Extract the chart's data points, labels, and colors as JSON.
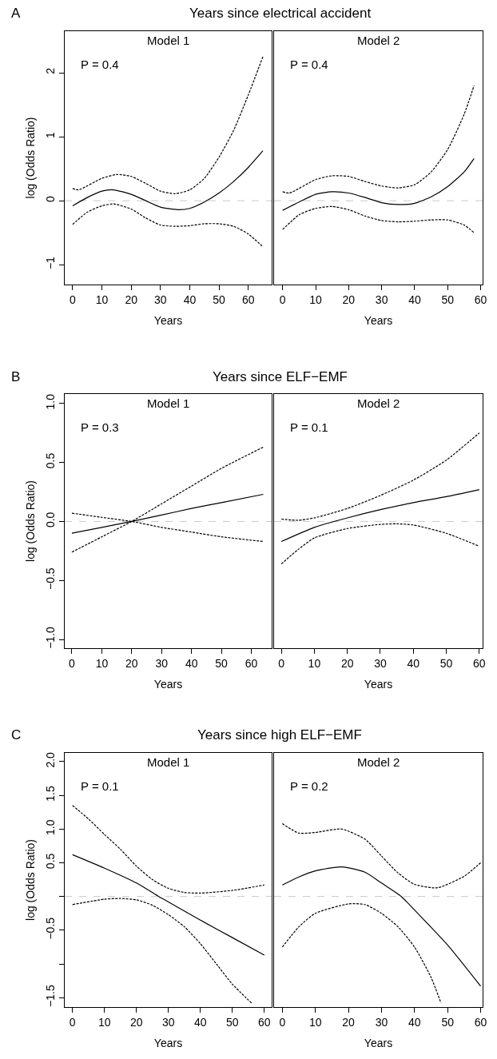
{
  "chart_data": [
    {
      "type": "line",
      "subtitle": "Years since electrical accident",
      "title": "Model 1",
      "xlabel": "Years",
      "ylabel": "log (Odds Ratio)",
      "annotations": [
        "A",
        "P = 0.4"
      ],
      "xlim": [
        -2.7,
        68
      ],
      "ylim": [
        -1.31,
        2.65
      ],
      "xticks": [
        0,
        10,
        20,
        30,
        40,
        50,
        60
      ],
      "yticks": [
        {
          "value": -1,
          "label": "−1"
        },
        0,
        1,
        2
      ],
      "grid": false,
      "ref_lines": [
        {
          "axis": "y",
          "value": 0,
          "color": "#c8c8c8",
          "line_style": "dashed"
        }
      ],
      "series": [
        {
          "color": "#000000",
          "line_style": "solid",
          "x": [
            0,
            5,
            10,
            14,
            20,
            25,
            30,
            36,
            40,
            45,
            50,
            55,
            60,
            65
          ],
          "values": [
            -0.08,
            0.05,
            0.15,
            0.17,
            0.1,
            0.0,
            -0.1,
            -0.14,
            -0.12,
            -0.02,
            0.12,
            0.3,
            0.52,
            0.78
          ]
        },
        {
          "color": "#000000",
          "line_style": "dashed",
          "x": [
            0,
            2,
            10,
            15,
            20,
            25,
            30,
            35,
            40,
            45,
            50,
            55,
            60,
            65
          ],
          "values": [
            0.19,
            0.17,
            0.35,
            0.41,
            0.38,
            0.27,
            0.15,
            0.11,
            0.17,
            0.35,
            0.68,
            1.1,
            1.65,
            2.25
          ]
        },
        {
          "color": "#000000",
          "line_style": "dashed",
          "x": [
            0,
            5,
            10,
            14,
            20,
            25,
            30,
            35,
            40,
            45,
            50,
            55,
            60,
            65
          ],
          "values": [
            -0.37,
            -0.18,
            -0.08,
            -0.05,
            -0.13,
            -0.27,
            -0.38,
            -0.4,
            -0.39,
            -0.36,
            -0.36,
            -0.4,
            -0.52,
            -0.72
          ]
        }
      ]
    },
    {
      "type": "line",
      "title": "Model 2",
      "xlabel": "Years",
      "annotations": [
        "P = 0.4"
      ],
      "xlim": [
        -2.6,
        60.6
      ],
      "ylim": [
        -1.31,
        2.65
      ],
      "xticks": [
        0,
        10,
        20,
        30,
        40,
        50,
        60
      ],
      "tick_labels": "x",
      "grid": false,
      "ref_lines": [
        {
          "axis": "y",
          "value": 0,
          "color": "#c8c8c8",
          "line_style": "dashed"
        }
      ],
      "series": [
        {
          "color": "#000000",
          "line_style": "solid",
          "x": [
            0,
            5,
            10,
            15,
            20,
            25,
            30,
            35,
            40,
            45,
            50,
            55,
            58
          ],
          "values": [
            -0.15,
            -0.02,
            0.1,
            0.14,
            0.12,
            0.05,
            -0.03,
            -0.06,
            -0.04,
            0.06,
            0.22,
            0.45,
            0.66
          ]
        },
        {
          "color": "#000000",
          "line_style": "dashed",
          "x": [
            0,
            2,
            10,
            15,
            20,
            25,
            30,
            35,
            40,
            45,
            50,
            55,
            58
          ],
          "values": [
            0.14,
            0.12,
            0.33,
            0.39,
            0.38,
            0.3,
            0.23,
            0.2,
            0.25,
            0.45,
            0.8,
            1.35,
            1.8
          ]
        },
        {
          "color": "#000000",
          "line_style": "dashed",
          "x": [
            0,
            5,
            10,
            15,
            20,
            25,
            30,
            35,
            40,
            45,
            50,
            55,
            58
          ],
          "values": [
            -0.45,
            -0.22,
            -0.12,
            -0.09,
            -0.14,
            -0.24,
            -0.31,
            -0.33,
            -0.32,
            -0.3,
            -0.3,
            -0.38,
            -0.5
          ]
        }
      ]
    },
    {
      "type": "line",
      "subtitle": "Years since ELF−EMF",
      "title": "Model 1",
      "xlabel": "Years",
      "ylabel": "log (Odds Ratio)",
      "annotations": [
        "B",
        "P = 0.3"
      ],
      "xlim": [
        -2.4,
        66.8
      ],
      "ylim": [
        -1.074,
        1.08
      ],
      "xticks": [
        0,
        10,
        20,
        30,
        40,
        50,
        60
      ],
      "yticks": [
        {
          "value": -1,
          "label": "−1.0"
        },
        {
          "value": -0.5,
          "label": "−0.5"
        },
        {
          "value": 0,
          "label": "0.0"
        },
        0.5,
        {
          "value": 1,
          "label": "1.0"
        }
      ],
      "grid": false,
      "ref_lines": [
        {
          "axis": "y",
          "value": 0,
          "color": "#c8c8c8",
          "line_style": "dashed"
        }
      ],
      "series": [
        {
          "color": "#000000",
          "line_style": "solid",
          "x": [
            0,
            10,
            20,
            30,
            40,
            50,
            64
          ],
          "values": [
            -0.1,
            -0.05,
            0.0,
            0.055,
            0.11,
            0.16,
            0.23
          ]
        },
        {
          "color": "#000000",
          "line_style": "dashed",
          "x": [
            0,
            10,
            20,
            30,
            40,
            50,
            64
          ],
          "values": [
            -0.26,
            -0.13,
            0.0,
            0.15,
            0.3,
            0.45,
            0.63
          ]
        },
        {
          "color": "#000000",
          "line_style": "dashed",
          "x": [
            0,
            10,
            20,
            30,
            40,
            50,
            64
          ],
          "values": [
            0.07,
            0.035,
            0.0,
            -0.05,
            -0.09,
            -0.13,
            -0.17
          ]
        }
      ]
    },
    {
      "type": "line",
      "title": "Model 2",
      "xlabel": "Years",
      "annotations": [
        "P = 0.1"
      ],
      "xlim": [
        -2.2,
        61
      ],
      "ylim": [
        -1.074,
        1.08
      ],
      "xticks": [
        0,
        10,
        20,
        30,
        40,
        50,
        60
      ],
      "tick_labels": "x",
      "grid": false,
      "ref_lines": [
        {
          "axis": "y",
          "value": 0,
          "color": "#c8c8c8",
          "line_style": "dashed"
        }
      ],
      "series": [
        {
          "color": "#000000",
          "line_style": "solid",
          "x": [
            0,
            10,
            20,
            30,
            40,
            50,
            60
          ],
          "values": [
            -0.17,
            -0.05,
            0.03,
            0.1,
            0.16,
            0.21,
            0.27
          ]
        },
        {
          "color": "#000000",
          "line_style": "dashed",
          "x": [
            0,
            5,
            10,
            20,
            30,
            40,
            50,
            60
          ],
          "values": [
            0.02,
            0.01,
            0.03,
            0.11,
            0.22,
            0.35,
            0.52,
            0.75
          ]
        },
        {
          "color": "#000000",
          "line_style": "dashed",
          "x": [
            0,
            5,
            10,
            20,
            30,
            35,
            40,
            50,
            60
          ],
          "values": [
            -0.36,
            -0.24,
            -0.14,
            -0.06,
            -0.025,
            -0.02,
            -0.03,
            -0.1,
            -0.21
          ]
        }
      ]
    },
    {
      "type": "line",
      "subtitle": "Years since high ELF−EMF",
      "title": "Model 1",
      "xlabel": "Years",
      "ylabel": "log (Odds Ratio)",
      "annotations": [
        "C",
        "P = 0.1"
      ],
      "xlim": [
        -2.44,
        62.3
      ],
      "ylim": [
        -1.64,
        2.13
      ],
      "xticks": [
        0,
        10,
        20,
        30,
        40,
        50,
        60
      ],
      "yticks": [
        {
          "value": -1.5,
          "label": "−1.5"
        },
        {
          "value": -1,
          "label": null
        },
        {
          "value": -0.5,
          "label": "−0.5"
        },
        {
          "value": 0,
          "label": null
        },
        0.5,
        {
          "value": 1,
          "label": "1.0"
        },
        1.5,
        {
          "value": 2,
          "label": "2.0"
        }
      ],
      "grid": false,
      "ref_lines": [
        {
          "axis": "y",
          "value": 0,
          "color": "#c8c8c8",
          "line_style": "dashed"
        }
      ],
      "series": [
        {
          "color": "#000000",
          "line_style": "solid",
          "x": [
            0,
            10,
            20,
            27,
            30,
            40,
            50,
            60
          ],
          "values": [
            0.62,
            0.42,
            0.2,
            0.0,
            -0.08,
            -0.35,
            -0.61,
            -0.87
          ]
        },
        {
          "color": "#000000",
          "line_style": "dashed",
          "x": [
            0,
            5,
            10,
            15,
            20,
            25,
            30,
            35,
            40,
            50,
            60
          ],
          "values": [
            1.35,
            1.15,
            0.92,
            0.7,
            0.45,
            0.25,
            0.12,
            0.06,
            0.05,
            0.09,
            0.17
          ]
        },
        {
          "color": "#000000",
          "line_style": "dashed",
          "x": [
            0,
            10,
            15,
            20,
            25,
            30,
            35,
            40,
            45,
            50,
            56
          ],
          "values": [
            -0.12,
            -0.04,
            -0.03,
            -0.05,
            -0.13,
            -0.27,
            -0.45,
            -0.7,
            -1.0,
            -1.3,
            -1.58
          ]
        }
      ]
    },
    {
      "type": "line",
      "title": "Model 2",
      "xlabel": "Years",
      "annotations": [
        "P = 0.2"
      ],
      "xlim": [
        -2.5,
        60.6
      ],
      "ylim": [
        -1.64,
        2.13
      ],
      "xticks": [
        0,
        10,
        20,
        30,
        40,
        50,
        60
      ],
      "tick_labels": "x",
      "grid": false,
      "ref_lines": [
        {
          "axis": "y",
          "value": 0,
          "color": "#c8c8c8",
          "line_style": "dashed"
        }
      ],
      "series": [
        {
          "color": "#000000",
          "line_style": "solid",
          "x": [
            0,
            5,
            10,
            18,
            25,
            30,
            36,
            40,
            50,
            60
          ],
          "values": [
            0.17,
            0.29,
            0.38,
            0.44,
            0.36,
            0.2,
            0.0,
            -0.2,
            -0.72,
            -1.33
          ]
        },
        {
          "color": "#000000",
          "line_style": "dashed",
          "x": [
            0,
            5,
            10,
            18,
            25,
            30,
            35,
            40,
            47,
            55,
            60
          ],
          "values": [
            1.08,
            0.94,
            0.95,
            1.0,
            0.85,
            0.6,
            0.35,
            0.18,
            0.13,
            0.3,
            0.5
          ]
        },
        {
          "color": "#000000",
          "line_style": "dashed",
          "x": [
            0,
            5,
            10,
            20,
            25,
            30,
            35,
            40,
            45,
            48
          ],
          "values": [
            -0.75,
            -0.45,
            -0.25,
            -0.11,
            -0.12,
            -0.25,
            -0.45,
            -0.75,
            -1.2,
            -1.58
          ]
        }
      ]
    }
  ]
}
